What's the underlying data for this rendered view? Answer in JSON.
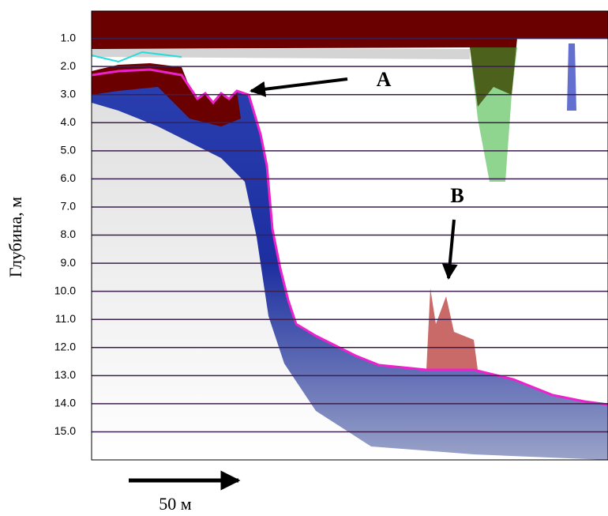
{
  "chart_data": {
    "type": "echogram",
    "y_label": "Глубина, м",
    "ylim": [
      0,
      16
    ],
    "y_inverted": true,
    "grid": true,
    "grid_color": "#3c1f4e",
    "yticks": [
      {
        "value": 1,
        "label": "1.0"
      },
      {
        "value": 2,
        "label": "2.0"
      },
      {
        "value": 3,
        "label": "3.0"
      },
      {
        "value": 4,
        "label": "4.0"
      },
      {
        "value": 5,
        "label": "5.0"
      },
      {
        "value": 6,
        "label": "6.0"
      },
      {
        "value": 7,
        "label": "7.0"
      },
      {
        "value": 8,
        "label": "8.0"
      },
      {
        "value": 9,
        "label": "9.0"
      },
      {
        "value": 10,
        "label": "10.0"
      },
      {
        "value": 11,
        "label": "11.0"
      },
      {
        "value": 12,
        "label": "12.0"
      },
      {
        "value": 13,
        "label": "13.0"
      },
      {
        "value": 14,
        "label": "14.0"
      },
      {
        "value": 15,
        "label": "15.0"
      }
    ],
    "annotations": [
      "A",
      "B"
    ],
    "scale_label": "50 м"
  }
}
